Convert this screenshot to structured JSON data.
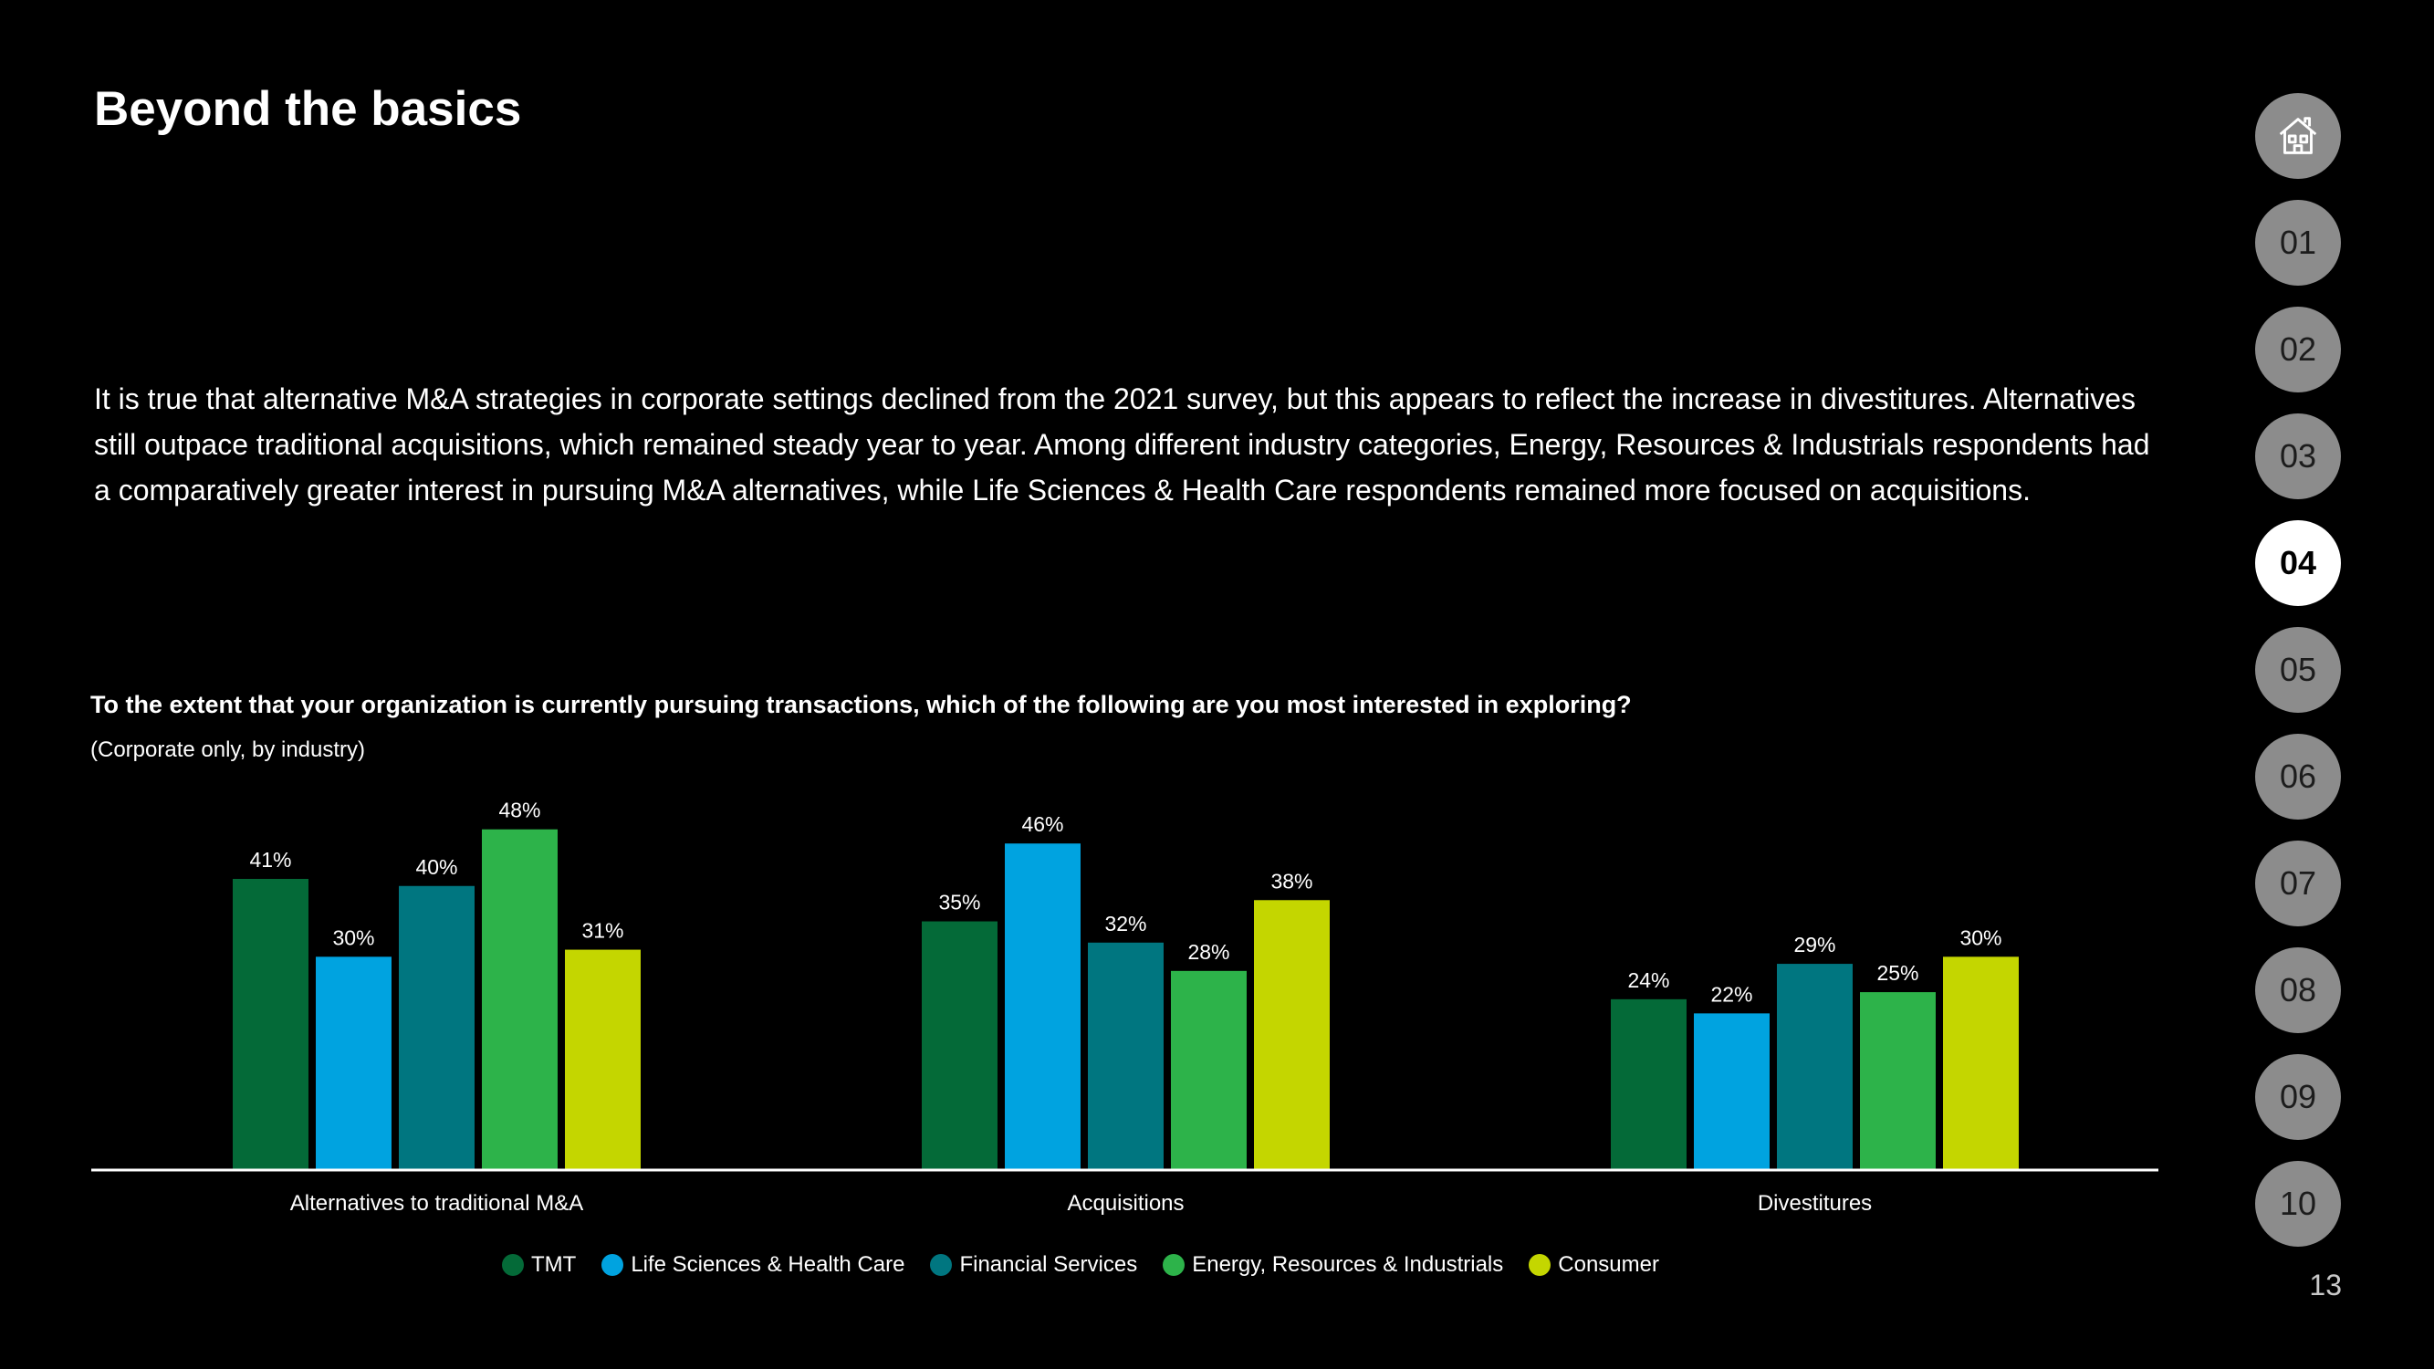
{
  "title": "Beyond the basics",
  "intro": "It is true that alternative M&A strategies in corporate settings declined from the 2021 survey, but this appears to reflect the increase in divestitures. Alternatives still outpace traditional acquisitions, which remained steady year to year. Among different industry categories, Energy, Resources & Industrials respondents had a comparatively greater interest in pursuing M&A alternatives, while Life Sciences & Health Care respondents remained more focused on acquisitions.",
  "question": "To the extent that your organization is currently pursuing transactions, which of the following are you most interested in exploring?",
  "subquestion": "(Corporate only, by industry)",
  "nav": {
    "home_icon": "home-icon",
    "items": [
      "01",
      "02",
      "03",
      "04",
      "05",
      "06",
      "07",
      "08",
      "09",
      "10"
    ],
    "active": "04"
  },
  "page_number": "13",
  "chart_data": {
    "type": "bar",
    "title": "To the extent that your organization is currently pursuing transactions, which of the following are you most interested in exploring?",
    "subtitle": "(Corporate only, by industry)",
    "categories": [
      "Alternatives to traditional M&A",
      "Acquisitions",
      "Divestitures"
    ],
    "series": [
      {
        "name": "TMT",
        "color": "#046a38",
        "values": [
          41,
          35,
          24
        ]
      },
      {
        "name": "Life Sciences & Health Care",
        "color": "#00a3e0",
        "values": [
          30,
          46,
          22
        ]
      },
      {
        "name": "Financial Services",
        "color": "#007680",
        "values": [
          40,
          32,
          29
        ]
      },
      {
        "name": "Energy, Resources & Industrials",
        "color": "#2db34a",
        "values": [
          48,
          28,
          25
        ]
      },
      {
        "name": "Consumer",
        "color": "#c4d600",
        "values": [
          31,
          38,
          30
        ]
      }
    ],
    "value_suffix": "%",
    "ylim": [
      0,
      50
    ],
    "xlabel": "",
    "ylabel": "",
    "grid": false,
    "legend": "bottom-center"
  }
}
